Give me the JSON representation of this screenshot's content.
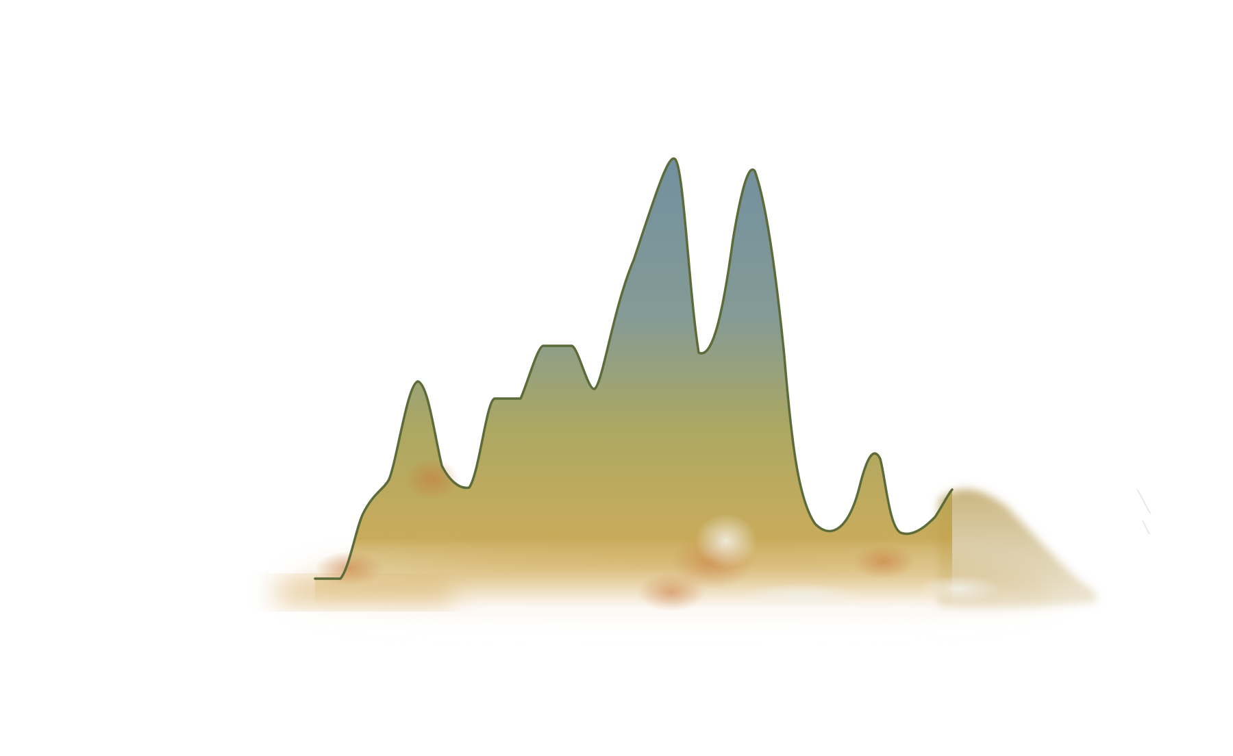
{
  "artwork": {
    "background_color": "#ffffff",
    "outline_color": "#5c6b3a",
    "palette": {
      "slate_blue": "#6b8a9a",
      "sage_green": "#9aa66a",
      "ochre": "#c3a24a",
      "sand": "#c8b27a",
      "rust": "#c8783a",
      "mist": "#e8e4d8"
    }
  }
}
